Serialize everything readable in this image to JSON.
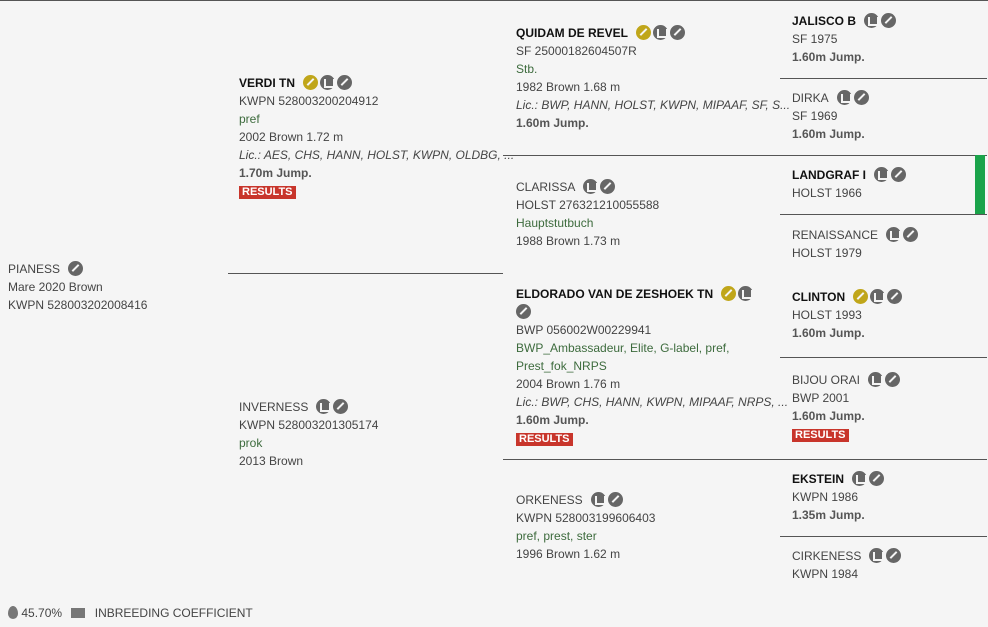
{
  "accent": {
    "results": "#c8352b",
    "key": "#c0a61a",
    "marker": "#1aa34a"
  },
  "horses": {
    "pianess": {
      "name": "PIANESS",
      "l1": "Mare 2020 Brown",
      "l2": "KWPN 528003202008416"
    },
    "verdi": {
      "name": "VERDI TN",
      "reg": "KWPN 528003200204912",
      "desig": "pref",
      "info": "2002 Brown 1.72 m",
      "lic": "Lic.: AES, CHS, HANN, HOLST, KWPN, OLDBG, ...",
      "jump": "1.70m Jump.",
      "results": "RESULTS"
    },
    "inverness": {
      "name": "INVERNESS",
      "reg": "KWPN 528003201305174",
      "desig": "prok",
      "info": "2013 Brown"
    },
    "quidam": {
      "name": "QUIDAM DE REVEL",
      "reg": "SF 25000182604507R",
      "desig": "Stb.",
      "info": "1982 Brown 1.68 m",
      "lic": "Lic.: BWP, HANN, HOLST, KWPN, MIPAAF, SF, S...",
      "jump": "1.60m Jump."
    },
    "clarissa": {
      "name": "CLARISSA",
      "reg": "HOLST 276321210055588",
      "desig": "Hauptstutbuch",
      "info": "1988 Brown 1.73 m"
    },
    "eldorado": {
      "name": "ELDORADO VAN DE ZESHOEK TN",
      "reg": "BWP 056002W00229941",
      "desig": "BWP_Ambassadeur, Elite, G-label, pref, Prest_fok_NRPS",
      "info": "2004 Brown 1.76 m",
      "lic": "Lic.: BWP, CHS, HANN, KWPN, MIPAAF, NRPS, ...",
      "jump": "1.60m Jump.",
      "results": "RESULTS"
    },
    "orkeness": {
      "name": "ORKENESS",
      "reg": "KWPN 528003199606403",
      "desig": "pref, prest, ster",
      "info": "1996 Brown 1.62 m"
    },
    "jalisco": {
      "name": "JALISCO B",
      "reg": "SF 1975",
      "jump": "1.60m Jump."
    },
    "dirka": {
      "name": "DIRKA",
      "reg": "SF 1969",
      "jump": "1.60m Jump."
    },
    "landgraf": {
      "name": "LANDGRAF I",
      "reg": "HOLST 1966"
    },
    "renaissance": {
      "name": "RENAISSANCE",
      "reg": "HOLST 1979"
    },
    "clinton": {
      "name": "CLINTON",
      "reg": "HOLST 1993",
      "jump": "1.60m Jump."
    },
    "bijou": {
      "name": "BIJOU ORAI",
      "reg": "BWP 2001",
      "jump": "1.60m Jump.",
      "results": "RESULTS"
    },
    "ekstein": {
      "name": "EKSTEIN",
      "reg": "KWPN 1986",
      "jump": "1.35m Jump."
    },
    "cirkeness": {
      "name": "CIRKENESS",
      "reg": "KWPN 1984"
    }
  },
  "footer": {
    "percent": "45.70%",
    "label": "INBREEDING COEFFICIENT"
  }
}
